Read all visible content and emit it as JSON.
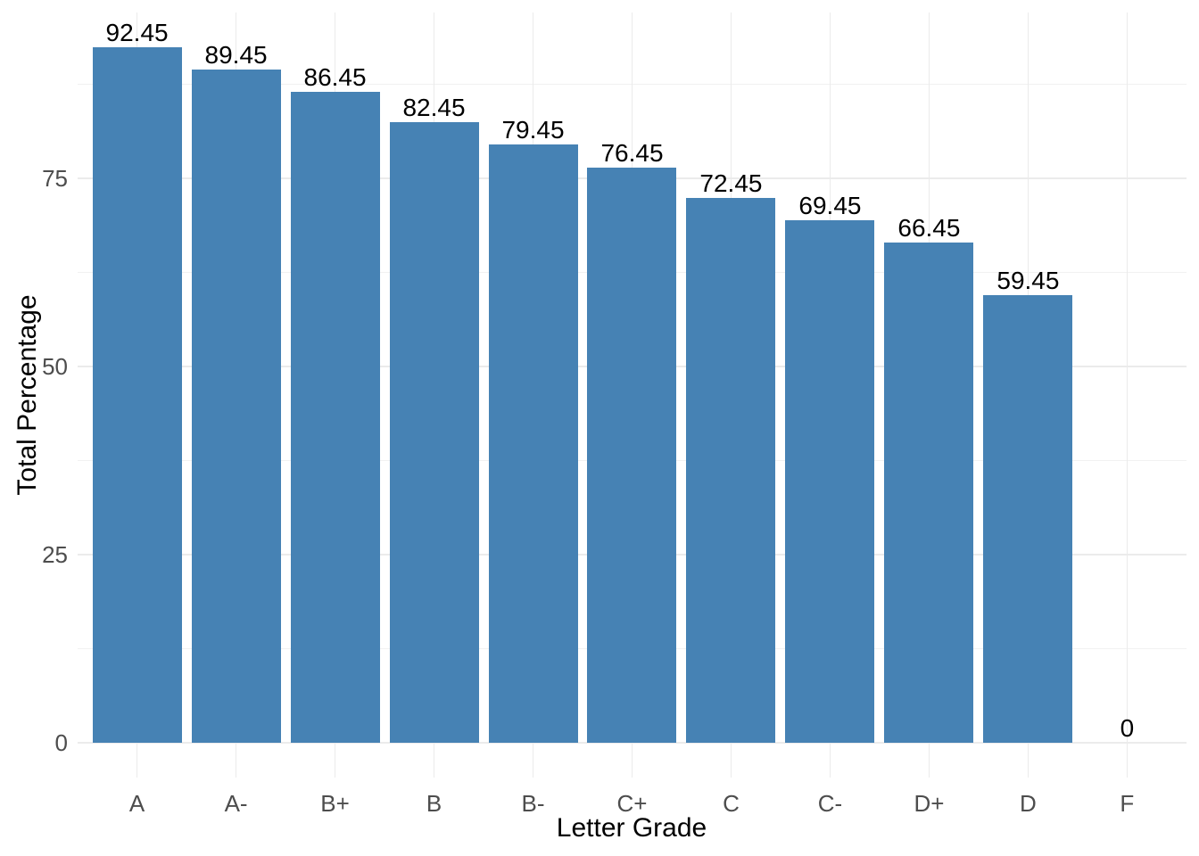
{
  "chart_data": {
    "type": "bar",
    "title": "",
    "xlabel": "Letter Grade",
    "ylabel": "Total Percentage",
    "categories": [
      "A",
      "A-",
      "B+",
      "B",
      "B-",
      "C+",
      "C",
      "C-",
      "D+",
      "D",
      "F"
    ],
    "values": [
      92.45,
      89.45,
      86.45,
      82.45,
      79.45,
      76.45,
      72.45,
      69.45,
      66.45,
      59.45,
      0
    ],
    "value_labels": [
      "92.45",
      "89.45",
      "86.45",
      "82.45",
      "79.45",
      "76.45",
      "72.45",
      "69.45",
      "66.45",
      "59.45",
      "0"
    ],
    "y_axis": {
      "tick_labels": [
        "0",
        "25",
        "50",
        "75"
      ],
      "ticks": [
        0,
        25,
        50,
        75
      ],
      "minor_ticks": [
        12.5,
        37.5,
        62.5,
        87.5
      ],
      "range": [
        -4.62,
        97.07
      ]
    },
    "legend": "none",
    "grid": "major-and-minor",
    "colors": {
      "bar": "#4682B4",
      "grid_major": "#EBEBEB",
      "grid_minor": "#F1F1F1",
      "axis_text": "#4D4D4D",
      "title_text": "#000000",
      "value_label_text": "#000000",
      "background": "#FFFFFF"
    }
  }
}
